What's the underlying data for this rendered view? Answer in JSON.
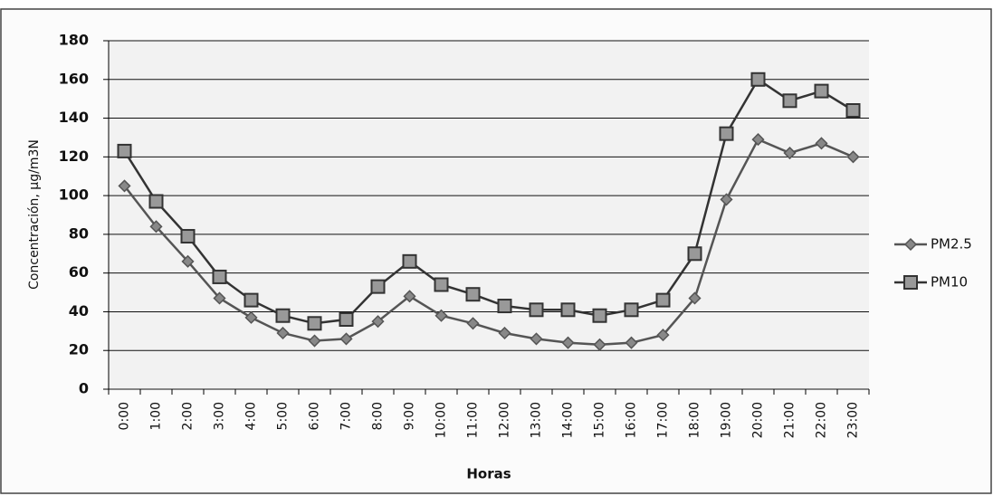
{
  "chart_data": {
    "type": "line",
    "x_label": "Horas",
    "y_label": "Concentración, µg/m3N",
    "categories": [
      "0:00",
      "1:00",
      "2:00",
      "3:00",
      "4:00",
      "5:00",
      "6:00",
      "7:00",
      "8:00",
      "9:00",
      "10:00",
      "11:00",
      "12:00",
      "13:00",
      "14:00",
      "15:00",
      "16:00",
      "17:00",
      "18:00",
      "19:00",
      "20:00",
      "21:00",
      "22:00",
      "23:00"
    ],
    "series": [
      {
        "name": "PM2.5",
        "color": "#555555",
        "marker": "diamond",
        "values": [
          105,
          84,
          66,
          47,
          37,
          29,
          25,
          26,
          35,
          48,
          38,
          34,
          29,
          26,
          24,
          23,
          24,
          28,
          47,
          98,
          129,
          122,
          127,
          120
        ]
      },
      {
        "name": "PM10",
        "color": "#333333",
        "marker": "square",
        "values": [
          123,
          97,
          79,
          58,
          46,
          38,
          34,
          36,
          53,
          66,
          54,
          49,
          43,
          41,
          41,
          38,
          41,
          46,
          70,
          132,
          160,
          149,
          154,
          144
        ]
      }
    ],
    "ylim": [
      0,
      180
    ],
    "yticks": [
      0,
      20,
      40,
      60,
      80,
      100,
      120,
      140,
      160,
      180
    ],
    "grid": true,
    "legend": "right"
  }
}
